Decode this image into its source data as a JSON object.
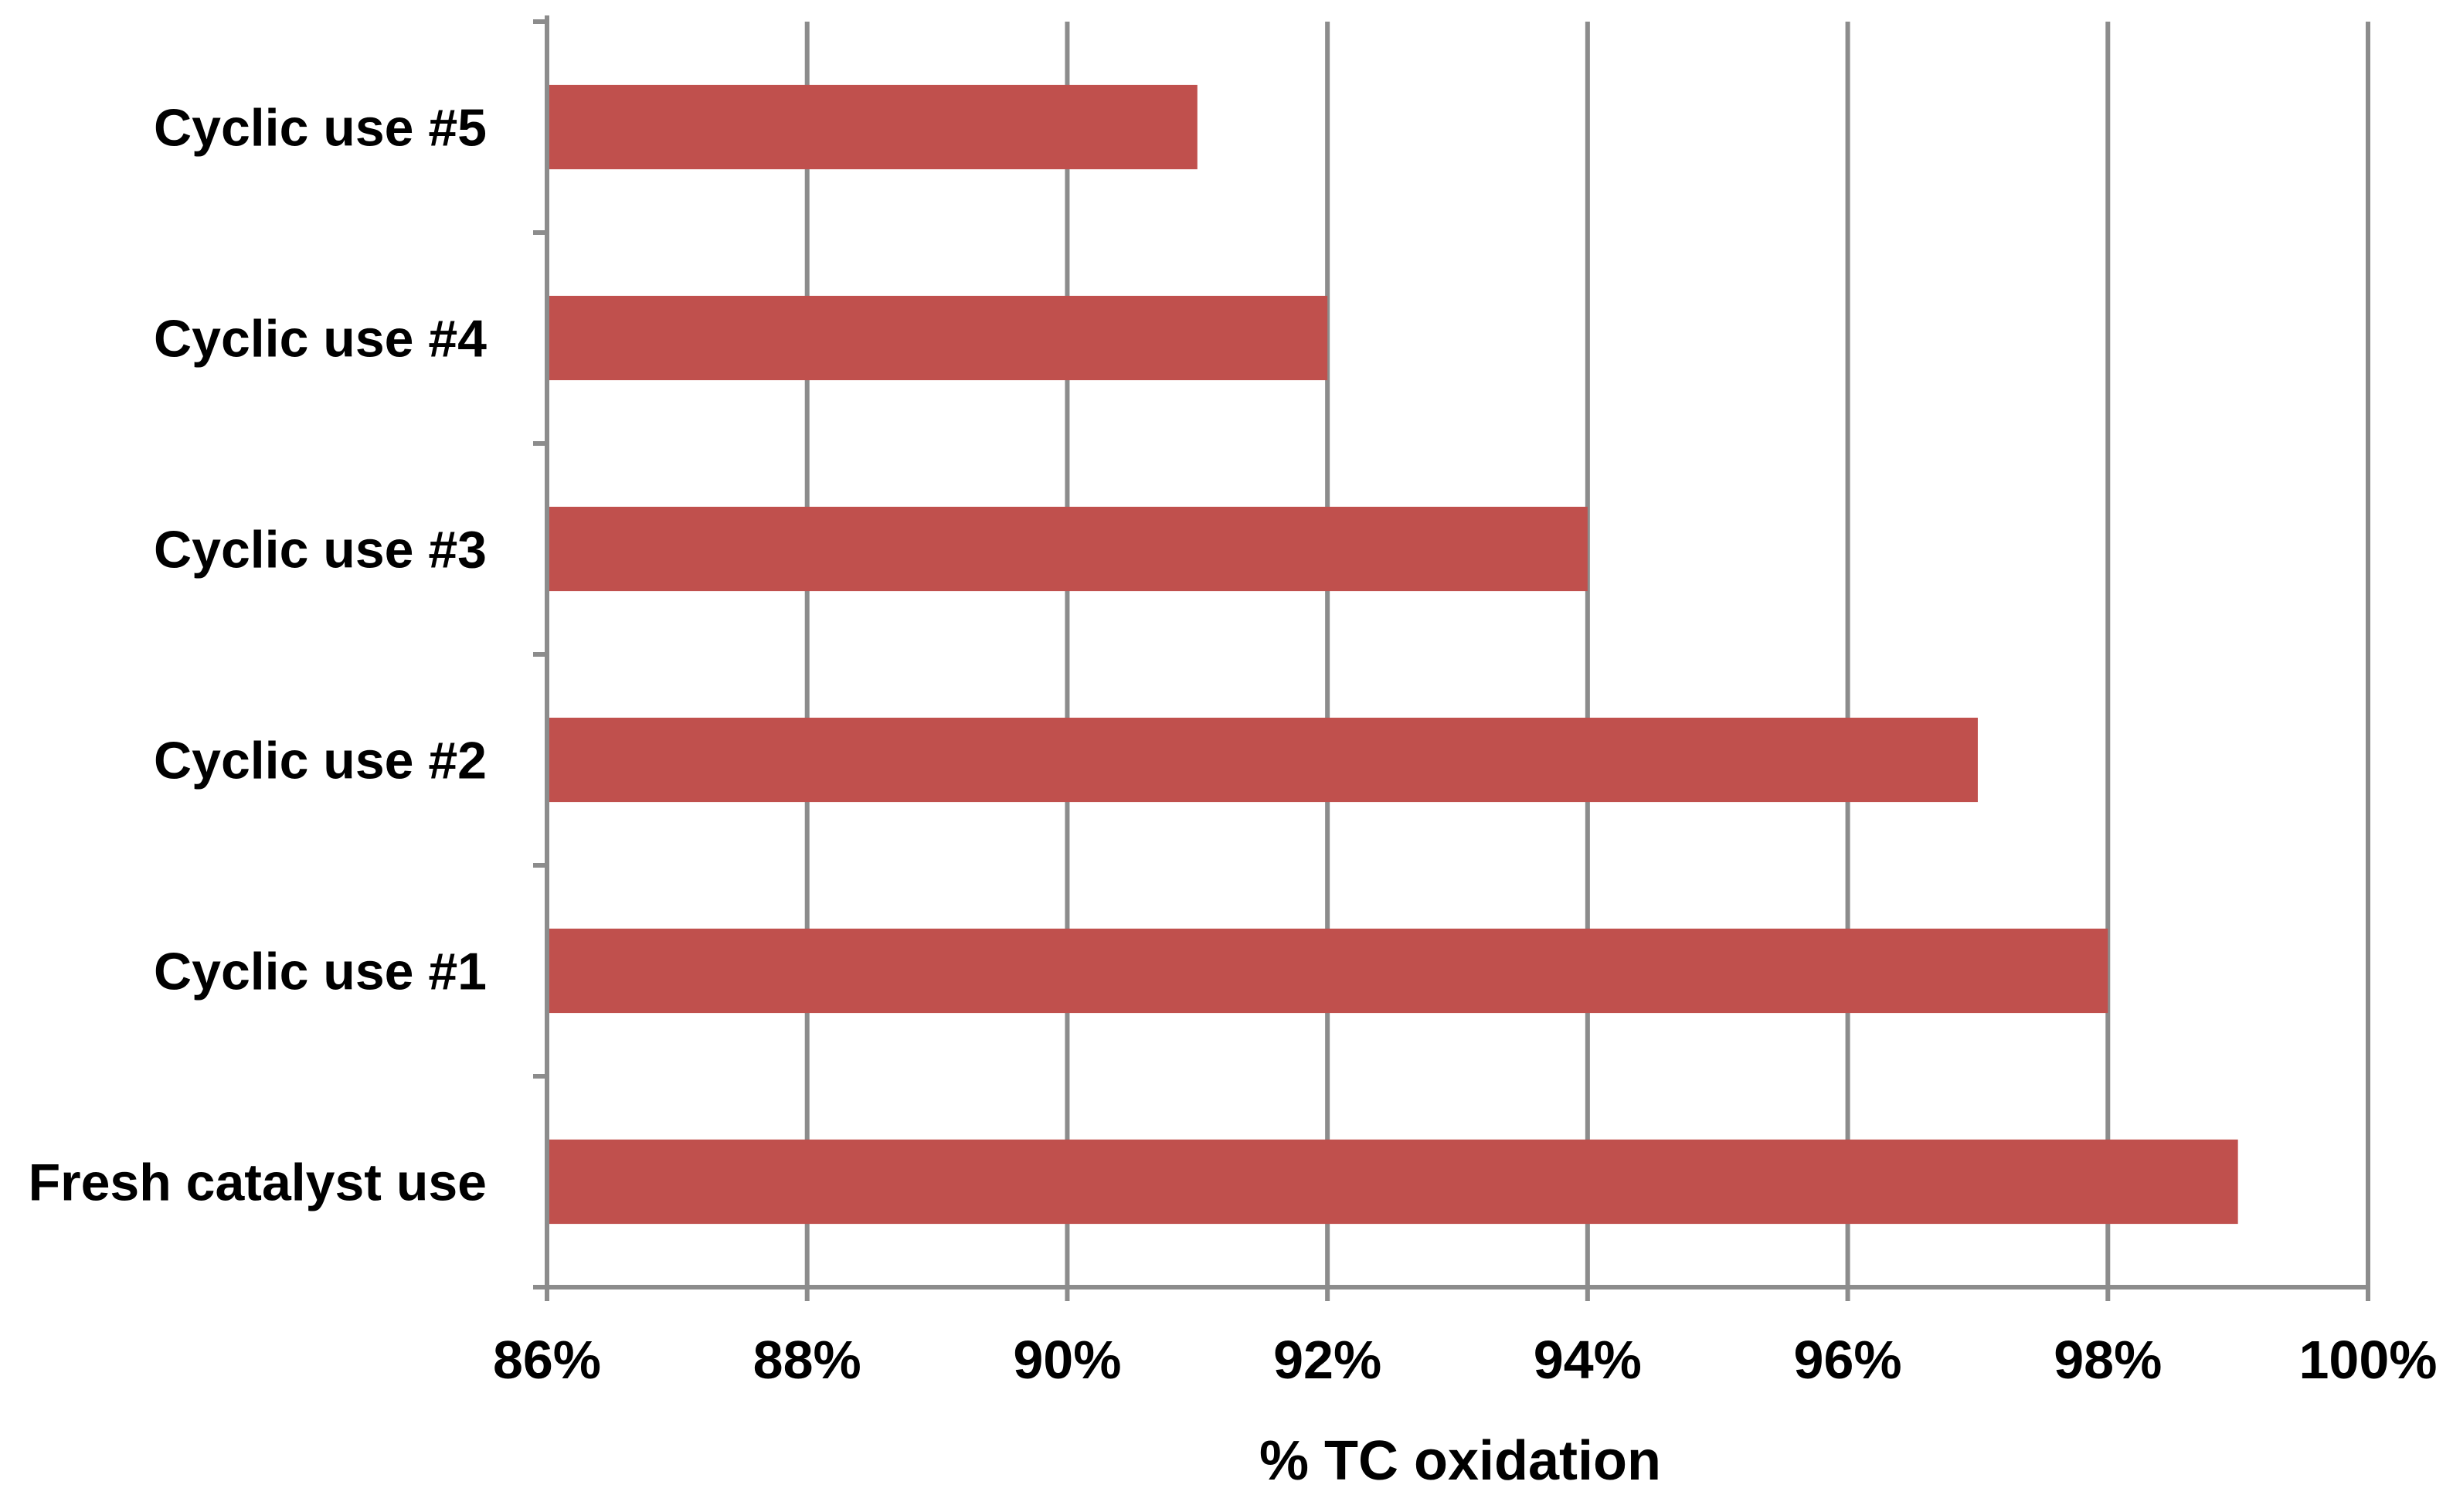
{
  "chart_data": {
    "type": "bar",
    "orientation": "horizontal",
    "categories": [
      "Fresh catalyst use",
      "Cyclic use #1",
      "Cyclic use #2",
      "Cyclic use #3",
      "Cyclic use #4",
      "Cyclic use #5"
    ],
    "series": [
      {
        "values": [
          99,
          98,
          97,
          94,
          92,
          91
        ]
      }
    ],
    "xlabel": "% TC oxidation",
    "ylabel": "",
    "xlim": [
      86,
      100
    ],
    "x_ticks": [
      86,
      88,
      90,
      92,
      94,
      96,
      98,
      100
    ],
    "x_tick_labels": [
      "86%",
      "88%",
      "90%",
      "92%",
      "94%",
      "96%",
      "98%",
      "100%"
    ],
    "grid": true,
    "legend": "none",
    "colors": {
      "bar": "#C0504D",
      "grid": "#8C8C8C",
      "axis": "#8C8C8C",
      "text": "#000000"
    }
  }
}
